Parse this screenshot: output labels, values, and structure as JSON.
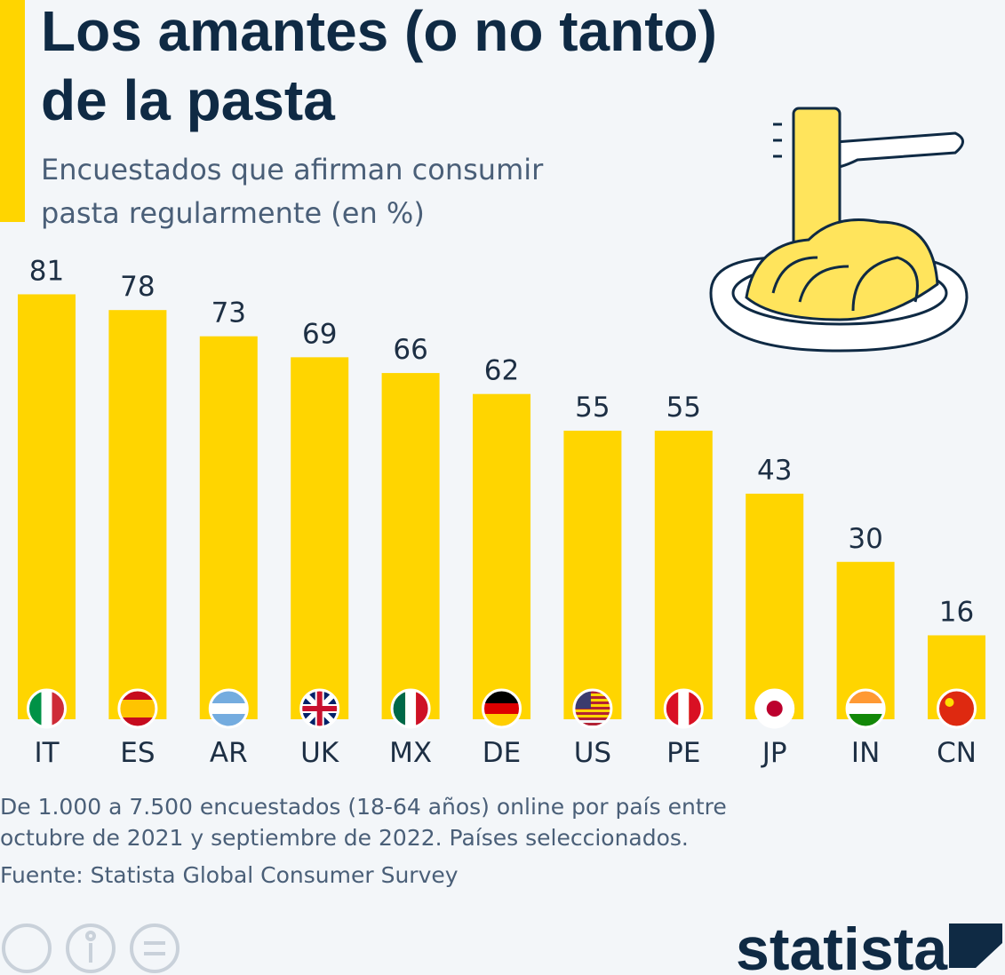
{
  "title": [
    "Los amantes (o no tanto)",
    "de la pasta"
  ],
  "subtitle": [
    "Encuestados que afirman consumir",
    "pasta regularmente (en %)"
  ],
  "chart_data": {
    "type": "bar",
    "categories": [
      "IT",
      "ES",
      "AR",
      "UK",
      "MX",
      "DE",
      "US",
      "PE",
      "JP",
      "IN",
      "CN"
    ],
    "values": [
      81,
      78,
      73,
      69,
      66,
      62,
      55,
      55,
      43,
      30,
      16
    ],
    "color": "#ffd500"
  },
  "notes": [
    "De 1.000 a 7.500 encuestados (18-64 años) online por país entre",
    "octubre de 2021 y septiembre de 2022. Países seleccionados."
  ],
  "source": "Fuente: Statista Global Consumer Survey",
  "logo": "statista"
}
